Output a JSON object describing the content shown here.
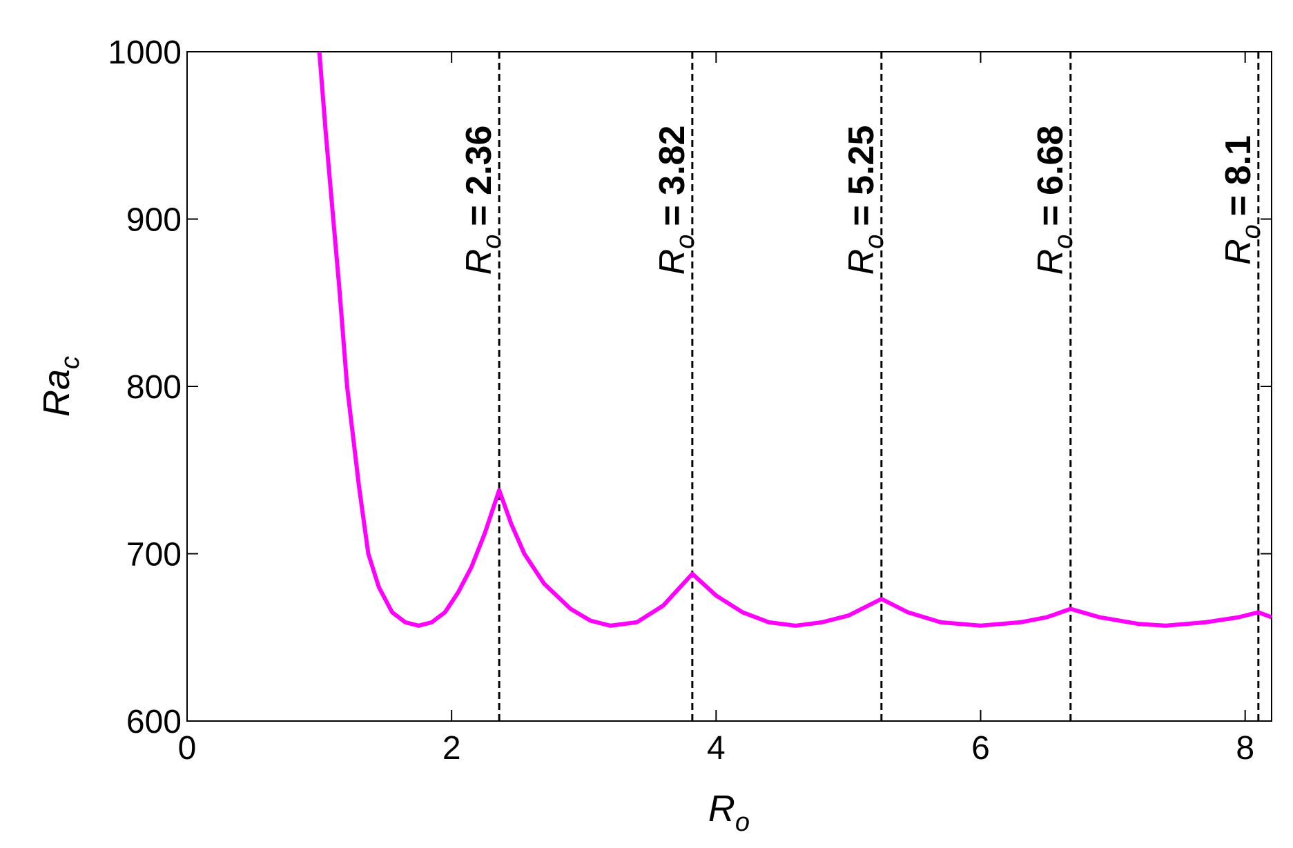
{
  "chart_data": {
    "type": "line",
    "xlabel": {
      "symbol": "R",
      "subscript": "o"
    },
    "ylabel": {
      "symbol": "Ra",
      "subscript": "c"
    },
    "x": [
      1.0,
      1.05,
      1.1,
      1.15,
      1.21,
      1.3,
      1.37,
      1.45,
      1.55,
      1.65,
      1.75,
      1.85,
      1.95,
      2.05,
      2.15,
      2.25,
      2.36,
      2.45,
      2.55,
      2.7,
      2.9,
      3.05,
      3.2,
      3.4,
      3.6,
      3.82,
      4.0,
      4.2,
      4.4,
      4.6,
      4.8,
      5.0,
      5.25,
      5.45,
      5.7,
      6.0,
      6.3,
      6.5,
      6.68,
      6.9,
      7.2,
      7.4,
      7.7,
      7.95,
      8.1,
      8.2
    ],
    "series": [
      {
        "color": "#ff00ff",
        "values": [
          1000,
          950,
          905,
          860,
          800,
          740,
          700,
          680,
          665,
          659,
          657,
          659,
          665,
          677,
          692,
          712,
          738,
          718,
          700,
          682,
          667,
          660,
          657,
          659,
          669,
          688,
          675,
          665,
          659,
          657,
          659,
          663,
          673,
          665,
          659,
          657,
          659,
          662,
          667,
          662,
          658,
          657,
          659,
          662,
          665,
          662
        ]
      }
    ],
    "annotations": [
      {
        "x": 2.36,
        "symbol": "R",
        "subscript": "o",
        "text": "= 2.36"
      },
      {
        "x": 3.82,
        "symbol": "R",
        "subscript": "o",
        "text": "= 3.82"
      },
      {
        "x": 5.25,
        "symbol": "R",
        "subscript": "o",
        "text": "= 5.25"
      },
      {
        "x": 6.68,
        "symbol": "R",
        "subscript": "o",
        "text": "= 6.68"
      },
      {
        "x": 8.1,
        "symbol": "R",
        "subscript": "o",
        "text": "= 8.1"
      }
    ],
    "xlim": [
      0,
      8.2
    ],
    "xticks": [
      0,
      2,
      4,
      6,
      8
    ],
    "ylim": [
      600,
      1000
    ],
    "yticks": [
      600,
      700,
      800,
      900,
      1000
    ]
  }
}
